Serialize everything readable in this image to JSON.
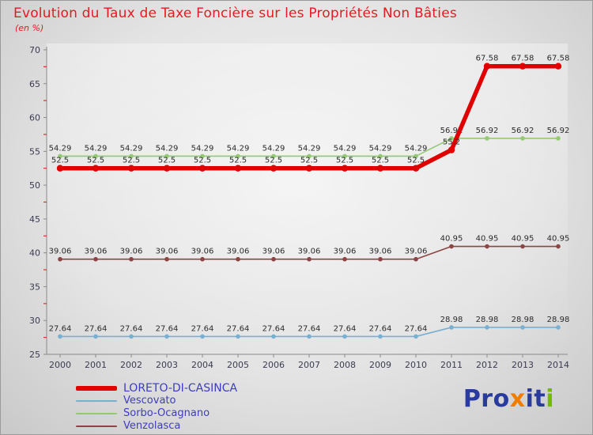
{
  "chart_data": {
    "type": "line",
    "title": "Evolution du Taux de Taxe Foncière sur les Propriétés Non Bâties",
    "unit_label": "(en %)",
    "x": [
      2000,
      2001,
      2002,
      2003,
      2004,
      2005,
      2006,
      2007,
      2008,
      2009,
      2010,
      2011,
      2012,
      2013,
      2014
    ],
    "xlabel": "",
    "ylabel": "",
    "ylim": [
      25,
      70
    ],
    "ytick_step": 5,
    "grid": false,
    "legend_position": "bottom-left",
    "axis_color": "#8a8a8a",
    "tick_label_color": "#3b3b52",
    "minor_tick_color": "#cc3333",
    "point_label_color": "#2b2b2b",
    "series": [
      {
        "name": "LORETO-DI-CASINCA",
        "color": "#e00000",
        "width": 5.5,
        "values": [
          52.5,
          52.5,
          52.5,
          52.5,
          52.5,
          52.5,
          52.5,
          52.5,
          52.5,
          52.5,
          52.5,
          55.2,
          67.58,
          67.58,
          67.58
        ]
      },
      {
        "name": "Vescovato",
        "color": "#79afd1",
        "width": 1.6,
        "values": [
          27.64,
          27.64,
          27.64,
          27.64,
          27.64,
          27.64,
          27.64,
          27.64,
          27.64,
          27.64,
          27.64,
          28.98,
          28.98,
          28.98,
          28.98
        ]
      },
      {
        "name": "Sorbo-Ocagnano",
        "color": "#94c973",
        "width": 1.6,
        "values": [
          54.29,
          54.29,
          54.29,
          54.29,
          54.29,
          54.29,
          54.29,
          54.29,
          54.29,
          54.29,
          54.29,
          56.92,
          56.92,
          56.92,
          56.92
        ]
      },
      {
        "name": "Venzolasca",
        "color": "#8b4545",
        "width": 1.6,
        "values": [
          39.06,
          39.06,
          39.06,
          39.06,
          39.06,
          39.06,
          39.06,
          39.06,
          39.06,
          39.06,
          39.06,
          40.95,
          40.95,
          40.95,
          40.95
        ]
      }
    ]
  },
  "logo": {
    "segments": [
      {
        "text": "Pro",
        "color": "#2a3b9f"
      },
      {
        "text": "x",
        "color": "#f07d00"
      },
      {
        "text": "it",
        "color": "#2a3b9f"
      },
      {
        "text": "i",
        "color": "#76b900"
      }
    ]
  }
}
